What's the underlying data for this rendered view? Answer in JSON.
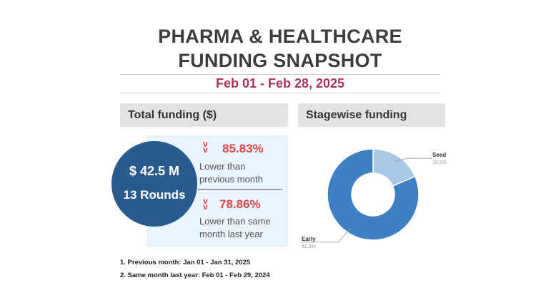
{
  "header": {
    "title_line1": "PHARMA & HEALTHCARE",
    "title_line2": "FUNDING SNAPSHOT",
    "date_range": "Feb 01 - Feb 28, 2025"
  },
  "total_funding": {
    "heading": "Total funding ($)",
    "amount": "$ 42.5 M",
    "rounds": "13 Rounds",
    "chevron": "v\nv",
    "metric1": {
      "value": "85.83%",
      "label_line1": "Lower than",
      "label_line2": "previous month",
      "color": "#e0424a"
    },
    "metric2": {
      "value": "78.86%",
      "label_line1": "Lower than same",
      "label_line2": "month last year",
      "color": "#e0424a"
    }
  },
  "stagewise": {
    "heading": "Stagewise funding"
  },
  "footnotes": {
    "note1": "1. Previous month: Jan 01 - Jan 31, 2025",
    "note2": "2. Same month last year: Feb 01 - Feb 29, 2024"
  },
  "chart_data": {
    "type": "pie",
    "variant": "donut",
    "title": "Stagewise funding",
    "categories": [
      "Seed",
      "Early"
    ],
    "values": [
      18.5,
      81.5
    ],
    "value_labels": [
      "18.5%",
      "81.5%"
    ],
    "colors": [
      "#a8c8e8",
      "#3d80c4"
    ]
  }
}
